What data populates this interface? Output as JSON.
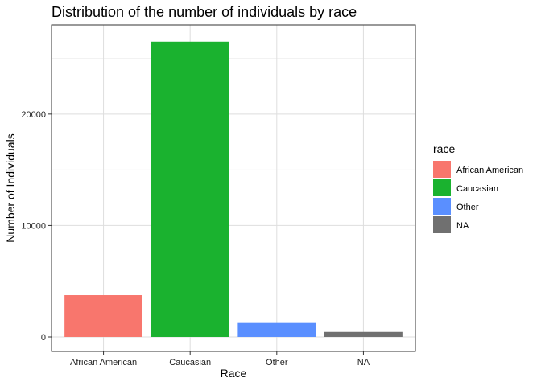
{
  "chart_data": {
    "type": "bar",
    "title": "Distribution of the number of individuals by race",
    "xlabel": "Race",
    "ylabel": "Number of Individuals",
    "categories": [
      "African American",
      "Caucasian",
      "Other",
      "NA"
    ],
    "values": [
      3750,
      26500,
      1250,
      450
    ],
    "colors": [
      "#F8766D",
      "#1AB22F",
      "#5A8FFF",
      "#707070"
    ],
    "ylim": [
      -1300,
      28000
    ],
    "yticks": [
      0,
      10000,
      20000
    ],
    "ytick_labels": [
      "0",
      "10000",
      "20000"
    ],
    "grid": true,
    "legend": {
      "title": "race",
      "placement": "right",
      "entries": [
        "African American",
        "Caucasian",
        "Other",
        "NA"
      ]
    }
  }
}
